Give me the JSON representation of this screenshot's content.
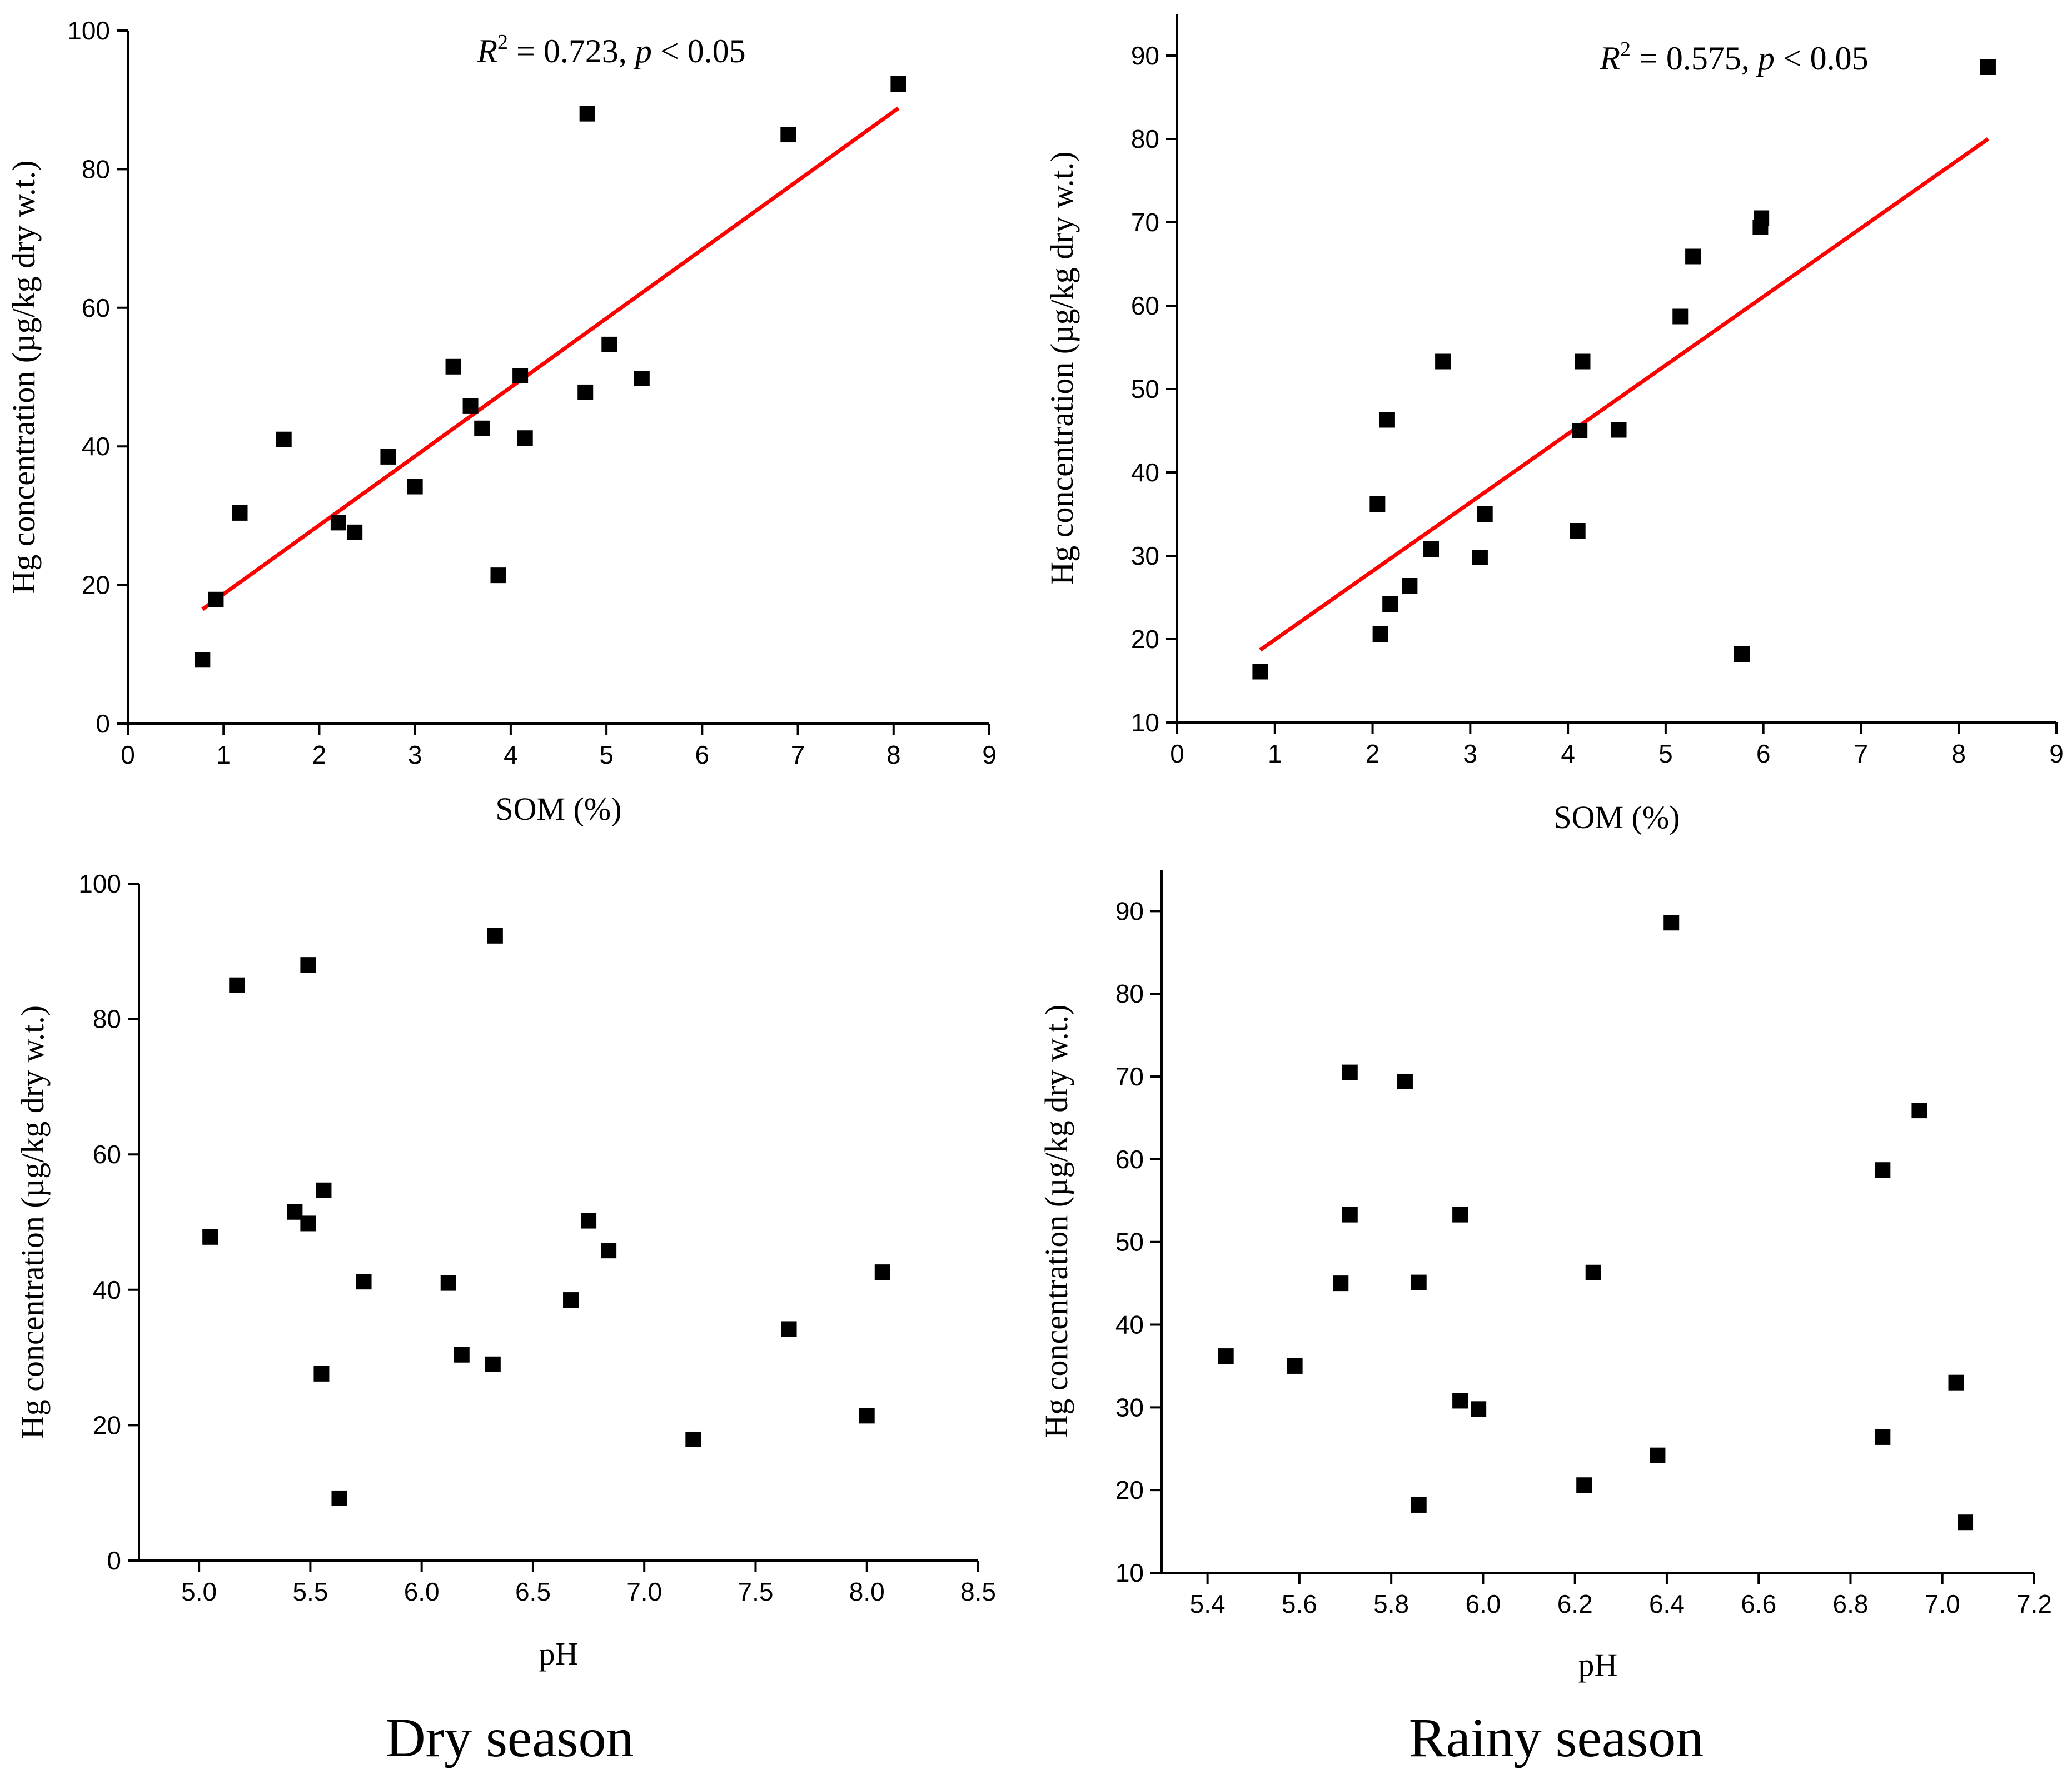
{
  "figure": {
    "season_labels": {
      "dry": "Dry season",
      "rainy": "Rainy season"
    }
  },
  "chart_data": [
    {
      "id": "dry-som",
      "type": "scatter",
      "title": "",
      "xlabel": "SOM (%)",
      "ylabel": "Hg concentration (µg/kg dry w.t.)",
      "xlim": [
        0,
        9
      ],
      "ylim": [
        0,
        100
      ],
      "xticks": [
        0,
        1,
        2,
        3,
        4,
        5,
        6,
        7,
        8,
        9
      ],
      "yticks": [
        0,
        20,
        40,
        60,
        80,
        100
      ],
      "x": [
        0.78,
        0.92,
        1.17,
        1.63,
        2.2,
        2.37,
        2.72,
        3.0,
        3.4,
        3.58,
        3.7,
        3.87,
        4.1,
        4.15,
        4.78,
        4.8,
        5.03,
        5.37,
        6.9,
        8.05
      ],
      "y": [
        9.2,
        17.9,
        30.4,
        41.0,
        29.0,
        27.6,
        38.5,
        34.2,
        51.5,
        45.8,
        42.6,
        21.4,
        50.2,
        41.2,
        47.8,
        88.0,
        54.7,
        49.8,
        85.0,
        92.3
      ],
      "fit": {
        "x": [
          0.78,
          8.05
        ],
        "y": [
          16.5,
          88.8
        ],
        "color": "#ff0000"
      },
      "annotation": {
        "r_label": "R",
        "r_power": "2",
        "r_value": " = 0.723, ",
        "p_label": "p",
        "p_value": " < 0.05"
      }
    },
    {
      "id": "rainy-som",
      "type": "scatter",
      "title": "",
      "xlabel": "SOM (%)",
      "ylabel": "Hg concentration (µg/kg dry w.t.)",
      "xlim": [
        0,
        9
      ],
      "ylim": [
        10,
        95
      ],
      "xticks": [
        0,
        1,
        2,
        3,
        4,
        5,
        6,
        7,
        8,
        9
      ],
      "yticks": [
        10,
        20,
        30,
        40,
        50,
        60,
        70,
        80,
        90
      ],
      "x": [
        0.85,
        2.05,
        2.08,
        2.15,
        2.18,
        2.38,
        2.6,
        2.72,
        3.1,
        3.15,
        4.1,
        4.12,
        4.15,
        4.52,
        5.15,
        5.28,
        5.78,
        5.97,
        5.98,
        8.3
      ],
      "y": [
        16.1,
        36.2,
        20.6,
        46.3,
        24.2,
        26.4,
        30.8,
        53.3,
        29.8,
        35.0,
        33.0,
        45.0,
        53.3,
        45.1,
        58.7,
        65.9,
        18.2,
        69.4,
        70.5,
        88.6
      ],
      "fit": {
        "x": [
          0.85,
          8.3
        ],
        "y": [
          18.7,
          80.0
        ],
        "color": "#ff0000"
      },
      "annotation": {
        "r_label": "R",
        "r_power": "2",
        "r_value": " = 0.575, ",
        "p_label": "p",
        "p_value": " < 0.05"
      }
    },
    {
      "id": "dry-ph",
      "type": "scatter",
      "title": "",
      "xlabel": "pH",
      "ylabel": "Hg concentration (µg/kg dry w.t.)",
      "xlim": [
        4.73,
        8.5
      ],
      "ylim": [
        0,
        100
      ],
      "xticks": [
        5.0,
        5.5,
        6.0,
        6.5,
        7.0,
        7.5,
        8.0,
        8.5
      ],
      "yticks": [
        0,
        20,
        40,
        60,
        80,
        100
      ],
      "x": [
        5.05,
        5.17,
        5.43,
        5.49,
        5.49,
        5.55,
        5.56,
        5.63,
        5.74,
        6.12,
        6.18,
        6.32,
        6.33,
        6.67,
        6.75,
        6.84,
        7.22,
        7.65,
        8.0,
        8.07
      ],
      "y": [
        47.8,
        85.0,
        51.5,
        49.8,
        88.0,
        27.6,
        54.7,
        9.2,
        41.2,
        41.0,
        30.4,
        29.0,
        92.3,
        38.5,
        50.2,
        45.8,
        17.9,
        34.2,
        21.4,
        42.6
      ]
    },
    {
      "id": "rainy-ph",
      "type": "scatter",
      "title": "",
      "xlabel": "pH",
      "ylabel": "Hg concentration (µg/kg dry w.t.)",
      "xlim": [
        5.3,
        7.2
      ],
      "ylim": [
        10,
        95
      ],
      "xticks": [
        5.4,
        5.6,
        5.8,
        6.0,
        6.2,
        6.4,
        6.6,
        6.8,
        7.0,
        7.2
      ],
      "yticks": [
        10,
        20,
        30,
        40,
        50,
        60,
        70,
        80,
        90
      ],
      "x": [
        5.44,
        5.59,
        5.69,
        5.71,
        5.71,
        5.83,
        5.86,
        5.86,
        5.95,
        5.95,
        5.99,
        6.22,
        6.24,
        6.38,
        6.41,
        6.87,
        6.87,
        6.95,
        7.03,
        7.05
      ],
      "y": [
        36.2,
        35.0,
        45.0,
        70.5,
        53.3,
        69.4,
        45.1,
        18.2,
        53.3,
        30.8,
        29.8,
        20.6,
        46.3,
        24.2,
        88.6,
        58.7,
        26.4,
        65.9,
        33.0,
        16.1
      ]
    }
  ]
}
